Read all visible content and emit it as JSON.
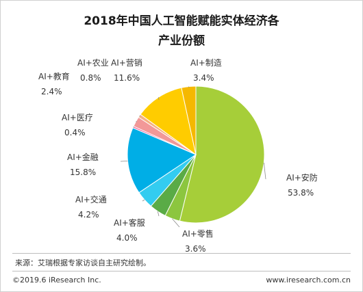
{
  "chart_data": {
    "type": "pie",
    "title_line1": "2018年中国人工智能赋能实体经济各",
    "title_line2": "产业份额",
    "slices": [
      {
        "name": "AI+安防",
        "value": 53.8,
        "label": "53.8%",
        "color": "#a6ce39"
      },
      {
        "name": "AI+零售",
        "value": 3.6,
        "label": "3.6%",
        "color": "#8cc63f"
      },
      {
        "name": "AI+客服",
        "value": 4.0,
        "label": "4.0%",
        "color": "#5aab46"
      },
      {
        "name": "AI+交通",
        "value": 4.2,
        "label": "4.2%",
        "color": "#33ccf0"
      },
      {
        "name": "AI+金融",
        "value": 15.8,
        "label": "15.8%",
        "color": "#00aee6"
      },
      {
        "name": "AI+医疗",
        "value": 0.4,
        "label": "0.4%",
        "color": "#ee6aa0"
      },
      {
        "name": "AI+教育",
        "value": 2.4,
        "label": "2.4%",
        "color": "#f29898"
      },
      {
        "name": "AI+农业",
        "value": 0.8,
        "label": "0.8%",
        "color": "#f4b183"
      },
      {
        "name": "AI+营销",
        "value": 11.6,
        "label": "11.6%",
        "color": "#ffcc00"
      },
      {
        "name": "AI+制造",
        "value": 3.4,
        "label": "3.4%",
        "color": "#f5b800"
      }
    ]
  },
  "footer": {
    "source": "来源：艾瑞根据专家访谈自主研究绘制。",
    "copyright": "©2019.6 iResearch Inc.",
    "website": "www.iresearch.com.cn"
  }
}
